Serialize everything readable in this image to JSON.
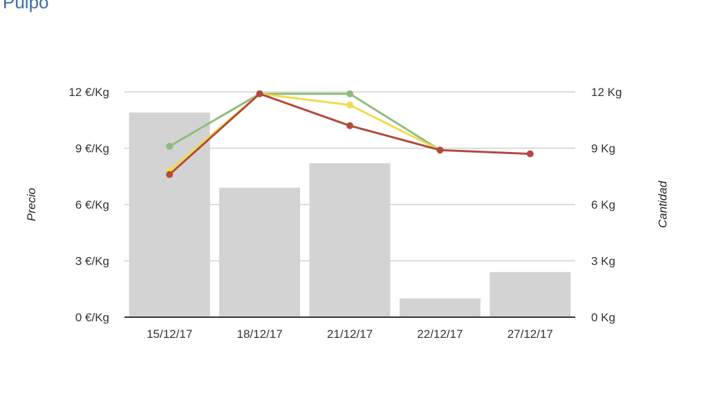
{
  "page": {
    "title": "Pulpo"
  },
  "chart_data": {
    "type": "bar",
    "categories": [
      "15/12/17",
      "18/12/17",
      "21/12/17",
      "22/12/17",
      "27/12/17"
    ],
    "y_left": {
      "label": "Precio",
      "range": [
        0,
        12
      ],
      "ticks": [
        0,
        3,
        6,
        9,
        12
      ],
      "tick_labels": [
        "0 €/Kg",
        "3 €/Kg",
        "6 €/Kg",
        "9 €/Kg",
        "12 €/Kg"
      ]
    },
    "y_right": {
      "label": "Cantidad",
      "range": [
        0,
        12
      ],
      "ticks": [
        0,
        3,
        6,
        9,
        12
      ],
      "tick_labels": [
        "0 Kg",
        "3 Kg",
        "6 Kg",
        "9 Kg",
        "12 Kg"
      ]
    },
    "bars": {
      "axis": "right",
      "color": "#d3d3d3",
      "values": [
        10.9,
        6.9,
        8.2,
        1.0,
        2.4
      ]
    },
    "lines": [
      {
        "axis": "left",
        "color": "#8fbc7e",
        "values": [
          9.1,
          11.9,
          11.9,
          8.9,
          null
        ]
      },
      {
        "axis": "left",
        "color": "#f0dc4e",
        "values": [
          7.8,
          11.9,
          11.3,
          8.9,
          null
        ]
      },
      {
        "axis": "left",
        "color": "#b24a3d",
        "values": [
          7.6,
          11.9,
          10.2,
          8.9,
          8.7
        ]
      }
    ],
    "grid": true
  }
}
